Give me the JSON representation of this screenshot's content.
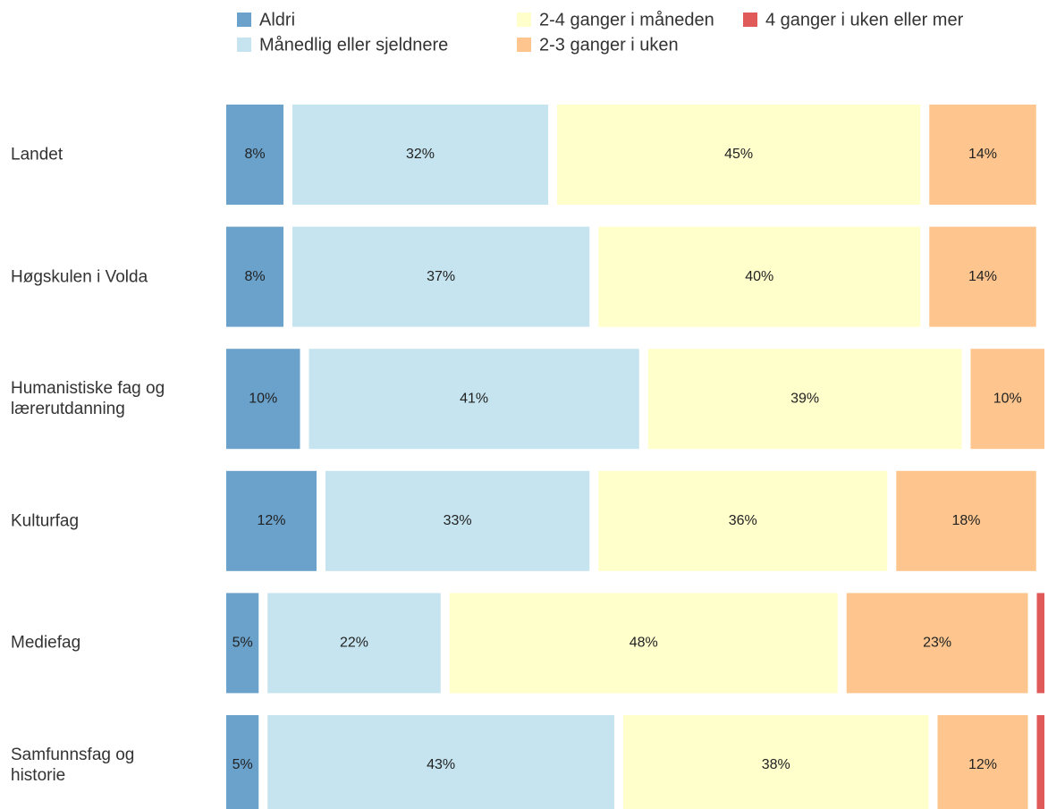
{
  "chart_data": {
    "type": "stacked-bar-horizontal",
    "categories": [
      "Landet",
      "Høgskulen i Volda",
      "Humanistiske fag og\nlærerutdanning",
      "Kulturfag",
      "Mediefag",
      "Samfunnsfag og\nhistorie"
    ],
    "series": [
      {
        "name": "Aldri",
        "color": "#6aa2cc",
        "values": [
          8,
          8,
          10,
          12,
          5,
          5
        ],
        "value_labels": [
          "8%",
          "8%",
          "10%",
          "12%",
          "5%",
          "5%"
        ]
      },
      {
        "name": "Månedlig eller sjeldnere",
        "color": "#c5e4ef",
        "values": [
          32,
          37,
          41,
          33,
          22,
          43
        ],
        "value_labels": [
          "32%",
          "37%",
          "41%",
          "33%",
          "22%",
          "43%"
        ]
      },
      {
        "name": "2-4 ganger i måneden",
        "color": "#ffffcc",
        "values": [
          45,
          40,
          39,
          36,
          48,
          38
        ],
        "value_labels": [
          "45%",
          "40%",
          "39%",
          "36%",
          "48%",
          "38%"
        ]
      },
      {
        "name": "2-3 ganger i uken",
        "color": "#fec68e",
        "values": [
          14,
          14,
          10,
          18,
          23,
          12
        ],
        "value_labels": [
          "14%",
          "14%",
          "10%",
          "18%",
          "23%",
          "12%"
        ]
      },
      {
        "name": "4 ganger i uken eller mer",
        "color": "#e05a5a",
        "values": [
          1,
          1,
          0,
          1,
          2,
          2
        ]
      }
    ]
  }
}
